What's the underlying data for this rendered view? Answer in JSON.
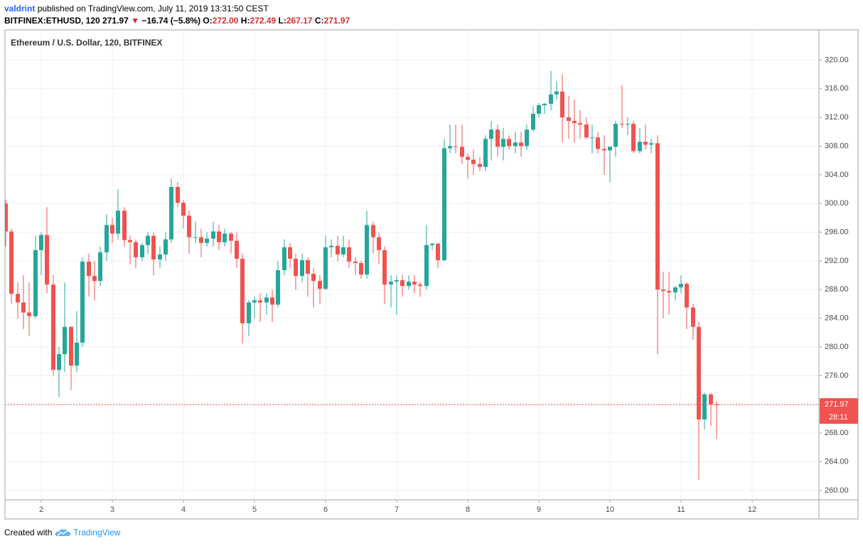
{
  "header": {
    "author": "valdrint",
    "published": "published on TradingView.com, July 11, 2019 13:31:50 CEST",
    "symbol": "BITFINEX:ETHUSD, 120",
    "last": "271.97",
    "arrow": "▼",
    "change": "−16.74 (−5.8%)",
    "ohlc": [
      {
        "label": "O:",
        "value": "272.00"
      },
      {
        "label": "H:",
        "value": "272.49"
      },
      {
        "label": "L:",
        "value": "267.17"
      },
      {
        "label": "C:",
        "value": "271.97"
      }
    ]
  },
  "footer": {
    "created": "Created with",
    "brand": "TradingView"
  },
  "chart_data": {
    "type": "candlestick",
    "legend": "Ethereum / U.S. Dollar, 120, BITFINEX",
    "up_color": "#26a69a",
    "down_color": "#ef5350",
    "grid": true,
    "price_line": true,
    "countdown": "28:11",
    "xlim": [
      1.5,
      12.94
    ],
    "xticks": [
      2,
      3,
      4,
      5,
      6,
      7,
      8,
      9,
      10,
      11,
      12
    ],
    "ylim": [
      258.7,
      324.2
    ],
    "yticks": [
      {
        "value": 260,
        "label": "260.00"
      },
      {
        "value": 264,
        "label": "264.00"
      },
      {
        "value": 268,
        "label": "268.00"
      },
      {
        "value": 272,
        "label": "272.00"
      },
      {
        "value": 276,
        "label": "276.00"
      },
      {
        "value": 280,
        "label": "280.00"
      },
      {
        "value": 284,
        "label": "284.00"
      },
      {
        "value": 288,
        "label": "288.00"
      },
      {
        "value": 292,
        "label": "292.00"
      },
      {
        "value": 296,
        "label": "296.00"
      },
      {
        "value": 300,
        "label": "300.00"
      },
      {
        "value": 304,
        "label": "304.00"
      },
      {
        "value": 308,
        "label": "308.00"
      },
      {
        "value": 312,
        "label": "312.00"
      },
      {
        "value": 316,
        "label": "316.00"
      },
      {
        "value": 320,
        "label": "320.00"
      }
    ],
    "x": [
      1.5,
      1.58,
      1.67,
      1.75,
      1.83,
      1.92,
      2,
      2.08,
      2.17,
      2.25,
      2.33,
      2.42,
      2.5,
      2.58,
      2.67,
      2.75,
      2.83,
      2.92,
      3,
      3.08,
      3.17,
      3.25,
      3.33,
      3.42,
      3.5,
      3.58,
      3.67,
      3.75,
      3.83,
      3.92,
      4,
      4.08,
      4.17,
      4.25,
      4.33,
      4.42,
      4.5,
      4.58,
      4.67,
      4.75,
      4.83,
      4.92,
      5,
      5.08,
      5.17,
      5.25,
      5.33,
      5.42,
      5.5,
      5.58,
      5.67,
      5.75,
      5.83,
      5.92,
      6,
      6.08,
      6.17,
      6.25,
      6.33,
      6.42,
      6.5,
      6.58,
      6.67,
      6.75,
      6.83,
      6.92,
      7,
      7.08,
      7.17,
      7.25,
      7.33,
      7.42,
      7.5,
      7.58,
      7.67,
      7.75,
      7.83,
      7.92,
      8,
      8.08,
      8.17,
      8.25,
      8.33,
      8.42,
      8.5,
      8.58,
      8.67,
      8.75,
      8.83,
      8.92,
      9,
      9.08,
      9.17,
      9.25,
      9.33,
      9.42,
      9.5,
      9.58,
      9.67,
      9.75,
      9.83,
      9.92,
      10,
      10.08,
      10.17,
      10.25,
      10.33,
      10.42,
      10.5,
      10.58,
      10.67,
      10.75,
      10.83,
      10.92,
      11,
      11.08,
      11.17,
      11.25,
      11.33,
      11.42,
      11.5
    ],
    "open": [
      300,
      296.1,
      287.4,
      286.2,
      284.8,
      284.3,
      293.5,
      295.6,
      288.7,
      276.8,
      279,
      282.8,
      277.4,
      280.6,
      291.9,
      289.9,
      289.2,
      293.2,
      297,
      295.8,
      299,
      294.9,
      294.6,
      292.5,
      294.2,
      295.5,
      292.2,
      292.9,
      295,
      302.3,
      300.1,
      298.3,
      295.3,
      295.3,
      294.5,
      295.1,
      296.1,
      294.6,
      295.8,
      294.8,
      292.3,
      283.3,
      286.2,
      286.5,
      286.2,
      286.9,
      285.9,
      290.7,
      293.9,
      292.3,
      289.9,
      292.1,
      290.2,
      289.2,
      288.1,
      293.9,
      294.1,
      292.9,
      293.9,
      291.9,
      291.7,
      290.1,
      297,
      295.3,
      293.5,
      288.7,
      289.1,
      289.3,
      288.5,
      289.1,
      288.7,
      288.5,
      294.2,
      294.4,
      292.1,
      307.7,
      308,
      307.9,
      306.5,
      306.1,
      305.5,
      305.1,
      309,
      310.3,
      307.9,
      309,
      308,
      308.5,
      308,
      310.3,
      312.5,
      313.7,
      313.9,
      315.2,
      315.6,
      312,
      311.5,
      311.2,
      311,
      309.2,
      309.2,
      307.6,
      307.4,
      307.9,
      311.1,
      311,
      311.1,
      307.3,
      308.6,
      308.2,
      308.4,
      288,
      287.8,
      287.6,
      288.3,
      288.8,
      285.5,
      282.8,
      269.9,
      273.4,
      272
    ],
    "high": [
      300.5,
      296.5,
      289,
      290,
      289,
      295.5,
      296,
      299.5,
      290,
      280,
      289,
      282.9,
      285,
      292.5,
      293,
      292,
      294,
      298.5,
      298,
      302,
      299.5,
      295.5,
      295,
      294.5,
      296,
      296,
      294,
      296,
      303.5,
      303,
      300.5,
      299,
      297.5,
      296.5,
      296,
      297.5,
      297,
      296.5,
      296,
      296,
      293,
      286.5,
      287,
      287.5,
      287.5,
      288,
      292,
      295,
      294.5,
      293,
      293,
      292.5,
      291,
      290,
      295.5,
      295,
      295.5,
      295.5,
      295,
      292.5,
      292,
      299,
      297.5,
      296,
      294,
      290,
      290,
      290,
      290,
      290,
      289,
      297,
      294.5,
      294.5,
      309,
      311,
      311,
      311,
      307,
      307.5,
      306.5,
      309.5,
      311.5,
      311,
      310.5,
      309.5,
      310,
      310,
      311,
      313.5,
      314,
      314,
      318.5,
      317,
      318,
      315,
      314.5,
      313,
      312,
      311,
      310,
      309.5,
      308,
      311.5,
      316.5,
      312,
      311.5,
      310.5,
      311,
      309,
      309.5,
      290.5,
      290.5,
      288.5,
      290,
      289,
      286,
      283.5,
      273.6,
      273.6,
      272.49
    ],
    "low": [
      294,
      286,
      284,
      282.5,
      281.5,
      284,
      290,
      287.5,
      276,
      273,
      276.5,
      274,
      276.5,
      280,
      287,
      286.5,
      288.5,
      292,
      294.5,
      295,
      294,
      291.5,
      291,
      292,
      293,
      290,
      291,
      292,
      294.5,
      299.5,
      296.5,
      293,
      294.5,
      292.5,
      294,
      294,
      293.5,
      294,
      293,
      291,
      280.5,
      281.5,
      284,
      283.5,
      284.5,
      283.5,
      285.5,
      290,
      291,
      288,
      289,
      287,
      285.5,
      286,
      288,
      292.5,
      292,
      292.5,
      291,
      290,
      289.5,
      289.5,
      293,
      291.5,
      286,
      285.5,
      284.5,
      287,
      288,
      287.5,
      287,
      288,
      293.5,
      291,
      292,
      307,
      307,
      305.5,
      303.5,
      304,
      304.5,
      304.5,
      306,
      306.5,
      306,
      307.5,
      307,
      306.5,
      307.5,
      310,
      312,
      312.5,
      313,
      314.5,
      308.5,
      309,
      308.5,
      309,
      309,
      307,
      307,
      304,
      303,
      306.5,
      310.5,
      309.5,
      307,
      307,
      307.5,
      307,
      279,
      284,
      284.5,
      286.5,
      287.5,
      282.5,
      281,
      261.5,
      268.5,
      269,
      267.17
    ],
    "close": [
      296.1,
      287.4,
      286.2,
      284.8,
      284.3,
      293.5,
      295.6,
      288.7,
      276.8,
      279,
      282.8,
      277.4,
      280.6,
      291.9,
      289.9,
      289.2,
      293.2,
      297,
      295.8,
      299,
      294.9,
      294.6,
      292.5,
      294.2,
      295.5,
      292.2,
      292.9,
      295,
      302.3,
      300.1,
      298.3,
      295.3,
      295.3,
      294.5,
      295.1,
      296.1,
      294.6,
      295.8,
      294.8,
      292.3,
      283.3,
      286.2,
      286.5,
      286.2,
      286.9,
      285.9,
      290.7,
      293.9,
      292.3,
      289.9,
      292.1,
      290.2,
      289.2,
      288.1,
      293.9,
      294.1,
      292.9,
      293.9,
      291.9,
      291.7,
      290.1,
      297,
      295.3,
      293.5,
      288.7,
      289.1,
      289.3,
      288.5,
      289.1,
      288.7,
      288.5,
      294.2,
      294.4,
      292.1,
      307.7,
      308,
      307.9,
      306.5,
      306.1,
      305.5,
      305.1,
      309,
      310.3,
      307.9,
      309,
      308,
      308.5,
      308,
      310.3,
      312.5,
      313.7,
      313.9,
      315.2,
      315.6,
      312,
      311.5,
      311.2,
      311,
      309.2,
      309.2,
      307.6,
      307.4,
      307.9,
      311.1,
      311,
      311.1,
      307.3,
      308.6,
      308.2,
      308.4,
      288,
      287.8,
      287.6,
      288.3,
      288.8,
      285.5,
      282.8,
      269.9,
      273.4,
      272,
      271.97
    ]
  }
}
